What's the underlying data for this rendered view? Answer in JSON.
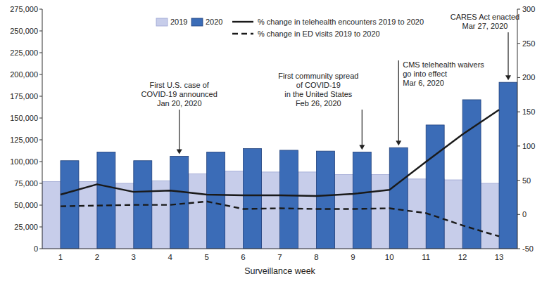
{
  "chart_data": {
    "type": "bar",
    "x_label": "Surveillance week",
    "categories": [
      "1",
      "2",
      "3",
      "4",
      "5",
      "6",
      "7",
      "8",
      "9",
      "10",
      "11",
      "12",
      "13"
    ],
    "ylim": [
      0,
      275000
    ],
    "yticks": [
      {
        "value": 0,
        "label": "0"
      },
      {
        "value": 25000,
        "label": "25,000"
      },
      {
        "value": 50000,
        "label": "50,000"
      },
      {
        "value": 75000,
        "label": "75,000"
      },
      {
        "value": 100000,
        "label": "100,000"
      },
      {
        "value": 125000,
        "label": "125,000"
      },
      {
        "value": 150000,
        "label": "150,000"
      },
      {
        "value": 175000,
        "label": "175,000"
      },
      {
        "value": 200000,
        "label": "200,000"
      },
      {
        "value": 225000,
        "label": "225,000"
      },
      {
        "value": 250000,
        "label": "250,000"
      },
      {
        "value": 275000,
        "label": "275,000"
      }
    ],
    "y2lim": [
      -50,
      300
    ],
    "y2ticks": [
      -50,
      0,
      50,
      100,
      150,
      200,
      250,
      300
    ],
    "grid": false,
    "legend": "top",
    "series": [
      {
        "name": "2019",
        "type": "bar",
        "color": "#c7cdea",
        "values": [
          77000,
          77000,
          75000,
          78000,
          86000,
          89000,
          88000,
          88000,
          85000,
          85000,
          80000,
          79000,
          75000
        ]
      },
      {
        "name": "2020",
        "type": "bar",
        "color": "#3b6cb7",
        "values": [
          101000,
          111000,
          101000,
          106000,
          111000,
          115000,
          113000,
          112000,
          111000,
          116000,
          142000,
          171000,
          191000
        ]
      },
      {
        "name": "% change in telehealth encounters 2019 to 2020",
        "type": "line",
        "axis": "y2",
        "color": "#1a1a1a",
        "line_style": "solid",
        "values": [
          29,
          44,
          33,
          35,
          29,
          28,
          28,
          27,
          30,
          36,
          77,
          117,
          153
        ]
      },
      {
        "name": "% change in ED visits 2019 to 2020",
        "type": "line",
        "axis": "y2",
        "color": "#1a1a1a",
        "line_style": "dashed",
        "values": [
          12,
          13,
          14,
          14,
          19,
          8,
          9,
          8,
          8,
          9,
          2,
          -16,
          -32
        ]
      }
    ],
    "annotations": [
      {
        "category": "4",
        "text": [
          "First U.S. case of",
          "COVID-19 announced",
          "Jan 20, 2020"
        ]
      },
      {
        "category": "9",
        "text": [
          "First community spread",
          "of COVID-19",
          "in the United States",
          "Feb 26, 2020"
        ]
      },
      {
        "category": "10",
        "text": [
          "CMS telehealth waivers",
          "go into effect",
          "Mar 6, 2020"
        ]
      },
      {
        "category": "13",
        "text": [
          "CARES Act enacted",
          "Mar 27, 2020"
        ]
      }
    ]
  }
}
